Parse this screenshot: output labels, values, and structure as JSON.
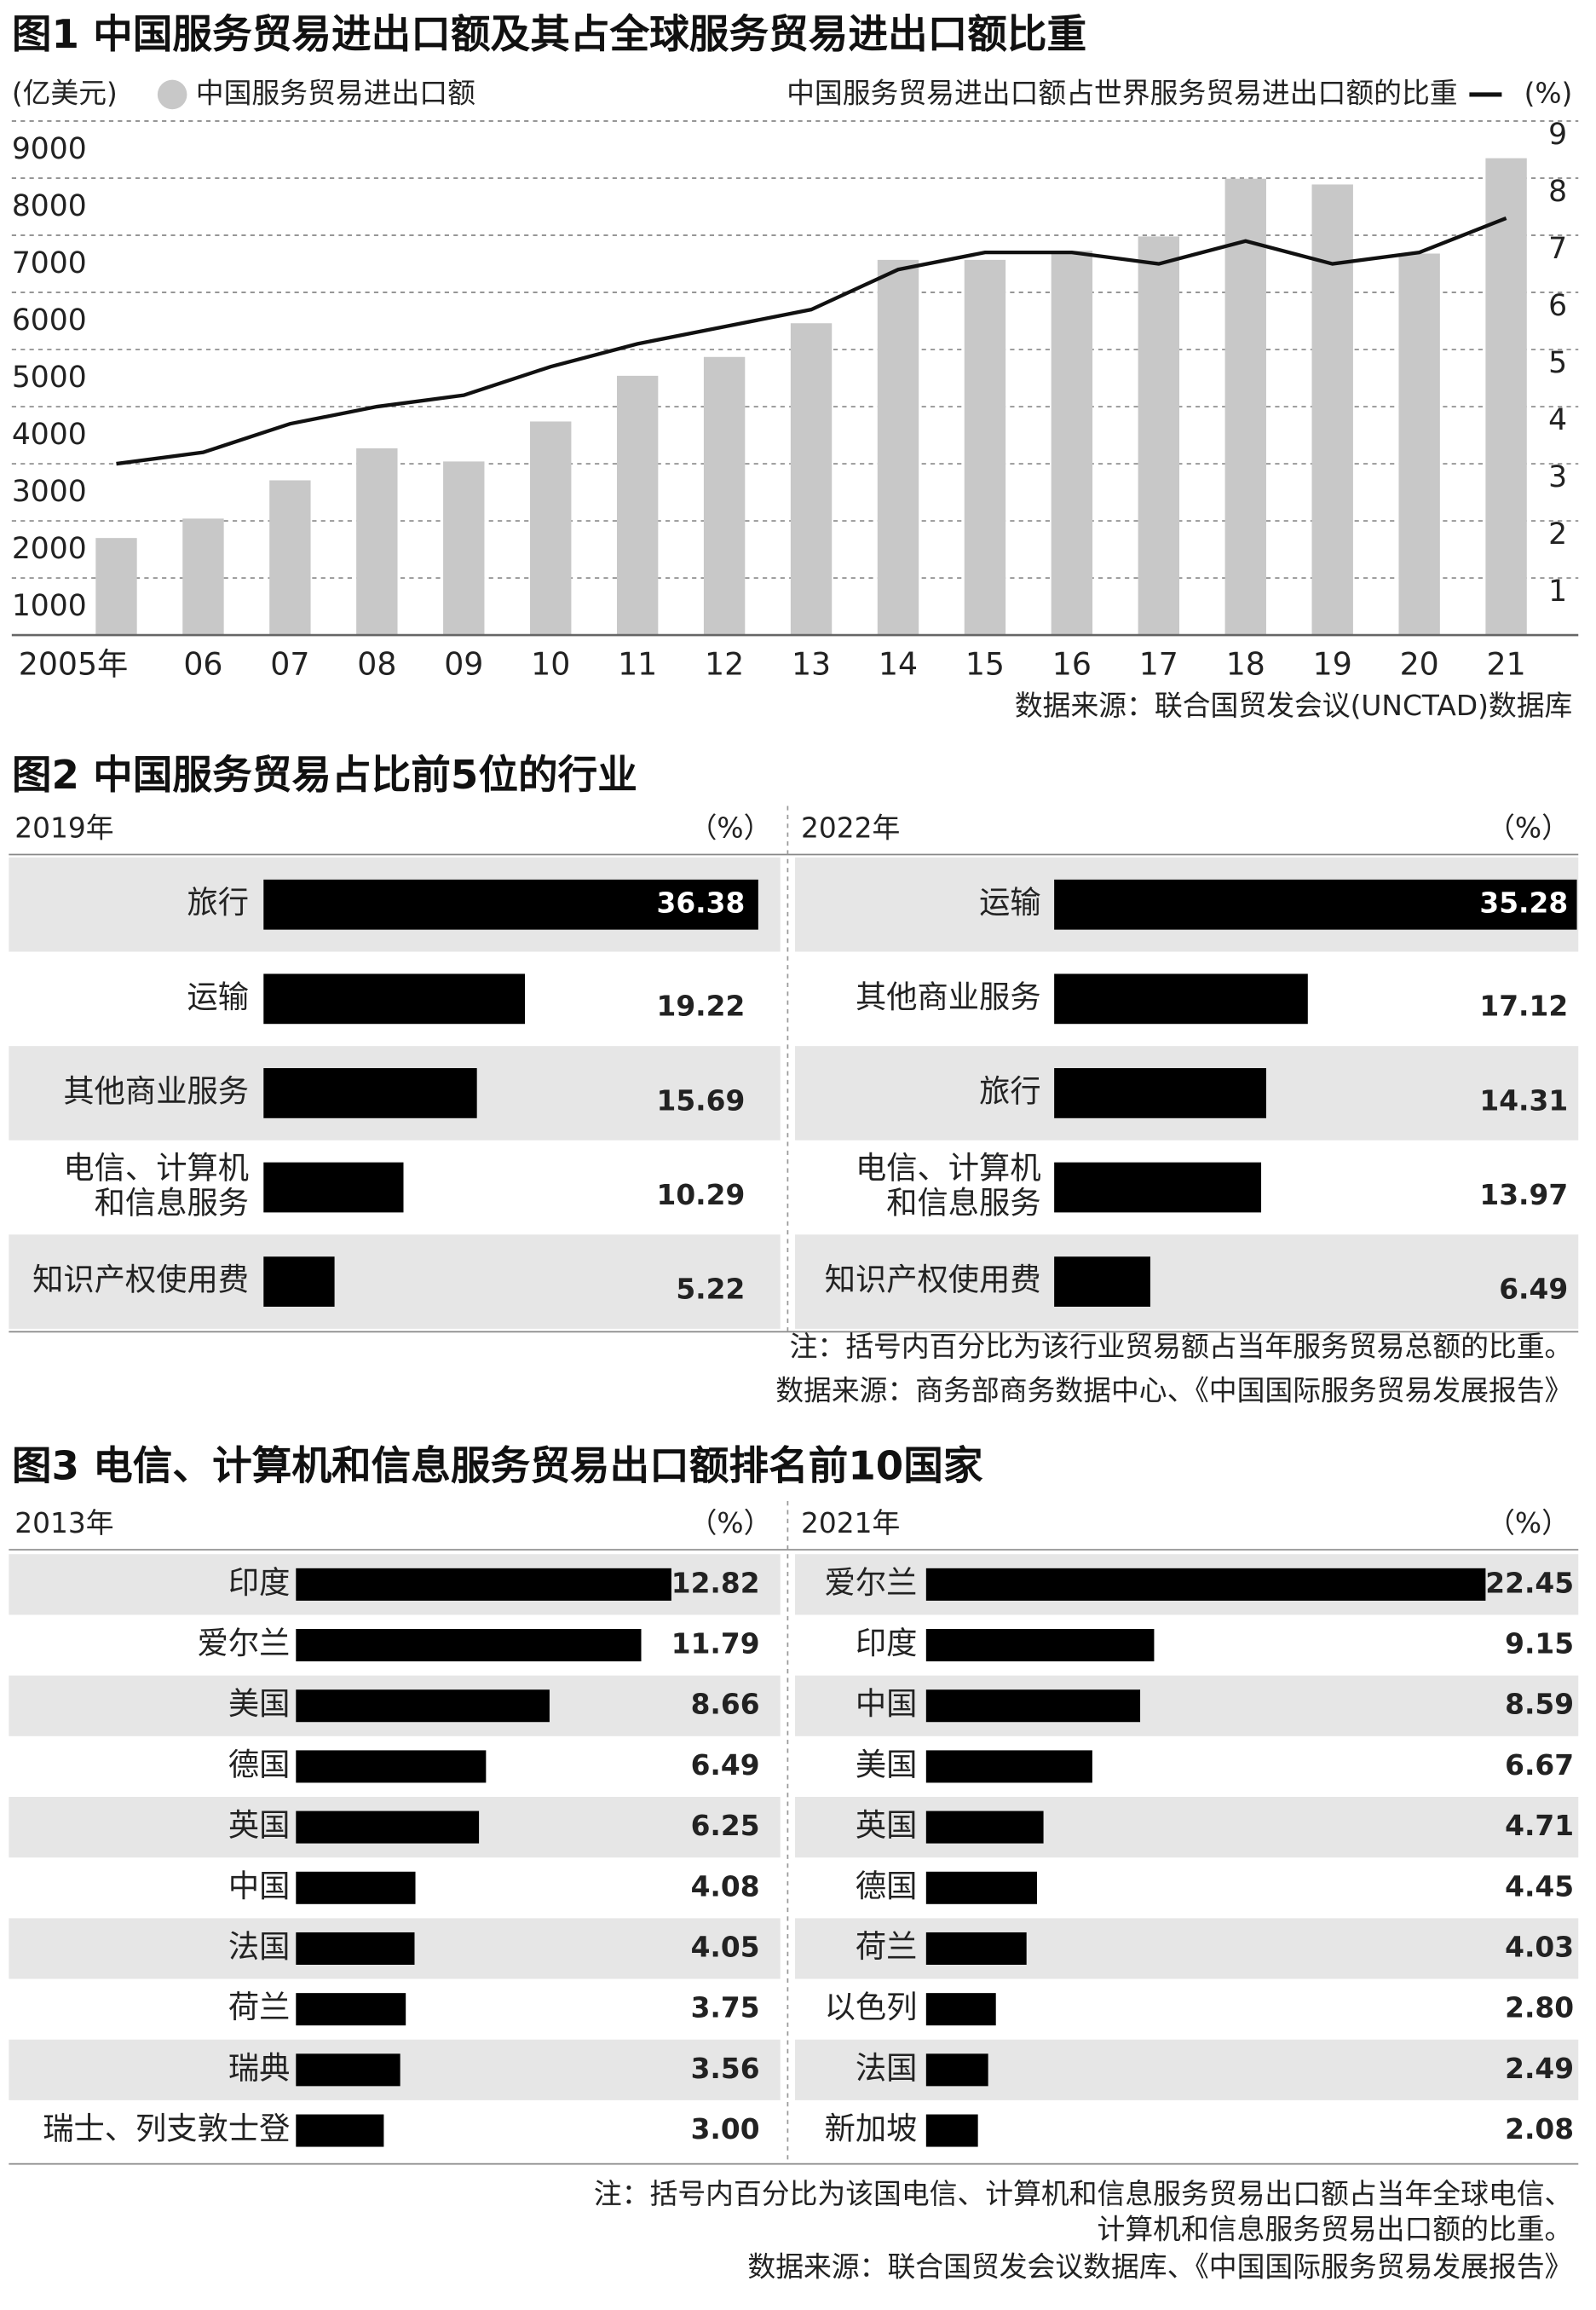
{
  "chart_data": [
    {
      "type": "combo",
      "title": "图1 中国服务贸易进出口额及其占全球服务贸易进出口额比重",
      "ylabel": "(亿美元)",
      "y2label": "(%)",
      "categories": [
        "2005年",
        "06",
        "07",
        "08",
        "09",
        "10",
        "11",
        "12",
        "13",
        "14",
        "15",
        "16",
        "17",
        "18",
        "19",
        "20",
        "21"
      ],
      "series": [
        {
          "name": "中国服务贸易进出口额",
          "color": "#c8c8c8",
          "kind": "bar",
          "values": [
            1700,
            2040,
            2710,
            3270,
            3040,
            3740,
            4540,
            4870,
            5460,
            6570,
            6570,
            6730,
            6980,
            7990,
            7890,
            6680,
            8350
          ]
        },
        {
          "name": "中国服务贸易进出口额占世界服务贸易进出口额的比重",
          "color": "#111111",
          "kind": "line",
          "axis": "y2",
          "values": [
            3.0,
            3.2,
            3.7,
            4.0,
            4.2,
            4.7,
            5.1,
            5.4,
            5.7,
            6.4,
            6.7,
            6.7,
            6.5,
            6.9,
            6.5,
            6.7,
            7.3
          ]
        }
      ],
      "ylim": [
        0,
        9000
      ],
      "yticks": [
        1000,
        2000,
        3000,
        4000,
        5000,
        6000,
        7000,
        8000,
        9000
      ],
      "y2lim": [
        0,
        9
      ],
      "y2ticks": [
        1,
        2,
        3,
        4,
        5,
        6,
        7,
        8,
        9
      ],
      "grid": true,
      "notes": [
        "数据来源：联合国贸发会议(UNCTAD)数据库"
      ]
    },
    {
      "type": "bar",
      "orientation": "horizontal",
      "title": "图2  中国服务贸易占比前5位的行业",
      "color": "#000000",
      "panels": [
        {
          "subtitle": "2019年",
          "unit": "（%）",
          "categories": [
            "旅行",
            "运输",
            "其他商业服务",
            "电信、计算机\n和信息服务",
            "知识产权使用费"
          ],
          "values": [
            36.38,
            19.22,
            15.69,
            10.29,
            5.22
          ]
        },
        {
          "subtitle": "2022年",
          "unit": "（%）",
          "categories": [
            "运输",
            "其他商业服务",
            "旅行",
            "电信、计算机\n和信息服务",
            "知识产权使用费"
          ],
          "values": [
            35.28,
            17.12,
            14.31,
            13.97,
            6.49
          ]
        }
      ],
      "notes": [
        "注：括号内百分比为该行业贸易额占当年服务贸易总额的比重。",
        "数据来源：商务部商务数据中心、《中国国际服务贸易发展报告》"
      ]
    },
    {
      "type": "bar",
      "orientation": "horizontal",
      "title": "图3 电信、计算机和信息服务贸易出口额排名前10国家",
      "color": "#000000",
      "panels": [
        {
          "subtitle": "2013年",
          "unit": "（%）",
          "categories": [
            "印度",
            "爱尔兰",
            "美国",
            "德国",
            "英国",
            "中国",
            "法国",
            "荷兰",
            "瑞典",
            "瑞士、列支敦士登"
          ],
          "values": [
            12.82,
            11.79,
            8.66,
            6.49,
            6.25,
            4.08,
            4.05,
            3.75,
            3.56,
            3
          ],
          "value_labels": [
            "12.82",
            "11.79",
            "8.66",
            "6.49",
            "6.25",
            "4.08",
            "4.05",
            "3.75",
            "3.56",
            "3.00"
          ]
        },
        {
          "subtitle": "2021年",
          "unit": "（%）",
          "categories": [
            "爱尔兰",
            "印度",
            "中国",
            "美国",
            "英国",
            "德国",
            "荷兰",
            "以色列",
            "法国",
            "新加坡"
          ],
          "values": [
            22.45,
            9.15,
            8.59,
            6.67,
            4.71,
            4.45,
            4.03,
            2.8,
            2.49,
            2.08
          ],
          "value_labels": [
            "22.45",
            "9.15",
            "8.59",
            "6.67",
            "4.71",
            "4.45",
            "4.03",
            "2.80",
            "2.49",
            "2.08"
          ]
        }
      ],
      "notes": [
        "注：括号内百分比为该国电信、计算机和信息服务贸易出口额占当年全球电信、\n计算机和信息服务贸易出口额的比重。",
        "数据来源：联合国贸发会议数据库、《中国国际服务贸易发展报告》"
      ]
    }
  ]
}
